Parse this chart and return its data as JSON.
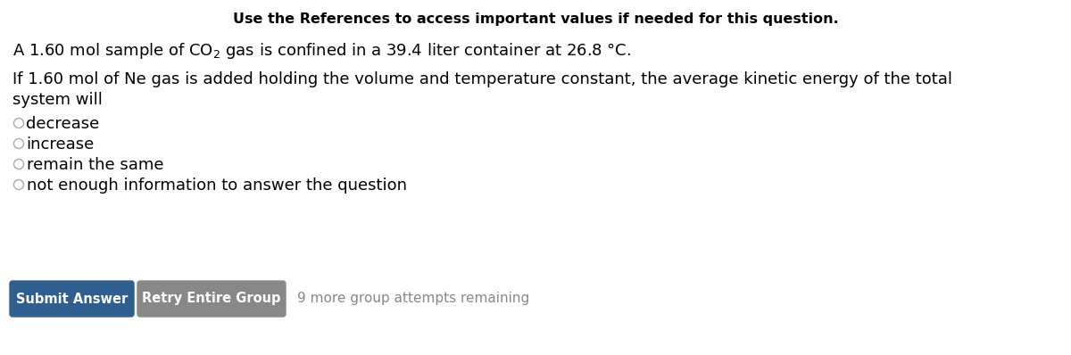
{
  "background_color": "#ffffff",
  "header_text": "Use the References to access important values if needed for this question.",
  "header_fontsize": 11.5,
  "line1_text": "A 1.60 mol sample of CO$_2$ gas is confined in a 39.4 liter container at 26.8 °C.",
  "line1_fontsize": 13,
  "line2_text": "If 1.60 mol of Ne gas is added holding the volume and temperature constant, the average kinetic energy of the total",
  "line2b_text": "system will",
  "line2_fontsize": 13,
  "options": [
    "decrease",
    "increase",
    "remain the same",
    "not enough information to answer the question"
  ],
  "options_fontsize": 13,
  "radio_color": "#aaaaaa",
  "button1_text": "Submit Answer",
  "button1_color": "#2e5f8e",
  "button1_text_color": "#ffffff",
  "button2_text": "Retry Entire Group",
  "button2_color": "#888888",
  "button2_text_color": "#ffffff",
  "attempts_text": "9 more group attempts remaining",
  "attempts_color": "#888888",
  "attempts_fontsize": 11,
  "fig_width": 12.0,
  "fig_height": 3.98,
  "dpi": 100
}
